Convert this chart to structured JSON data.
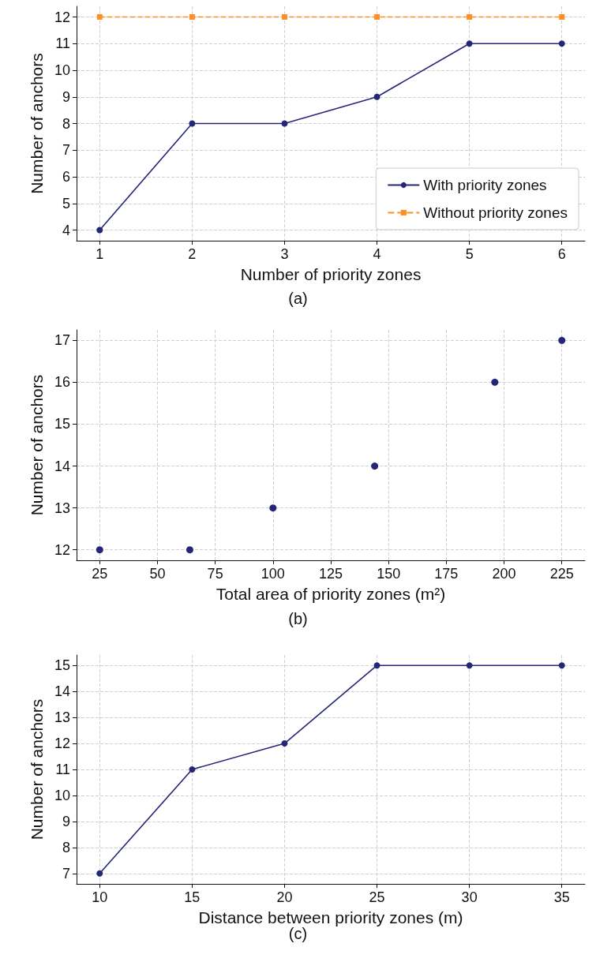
{
  "chart_data": [
    {
      "type": "line",
      "xlabel": "Number of priority zones",
      "ylabel": "Number of anchors",
      "annotations": [
        "(a)"
      ],
      "x": [
        1,
        2,
        3,
        4,
        5,
        6
      ],
      "xlim": [
        0.75,
        6.25
      ],
      "xticks": [
        1,
        2,
        3,
        4,
        5,
        6
      ],
      "ylim": [
        3.6,
        12.4
      ],
      "yticks": [
        4,
        5,
        6,
        7,
        8,
        9,
        10,
        11,
        12
      ],
      "grid": true,
      "legend": "bottom right",
      "series": [
        {
          "name": "With priority zones",
          "color": "#262678",
          "values": [
            4,
            8,
            8,
            9,
            11,
            11
          ],
          "marker": "circle",
          "line_style": "solid"
        },
        {
          "name": "Without priority zones",
          "color": "#fd8f24",
          "values": [
            12,
            12,
            12,
            12,
            12,
            12
          ],
          "marker": "square",
          "line_style": "dashed"
        }
      ]
    },
    {
      "type": "scatter",
      "xlabel": "Total area of priority zones (m²)",
      "ylabel": "Number of anchors",
      "annotations": [
        "(b)"
      ],
      "x": [
        25,
        64,
        100,
        144,
        196,
        225
      ],
      "xlim": [
        15,
        235
      ],
      "xticks": [
        25,
        50,
        75,
        100,
        125,
        150,
        175,
        200,
        225
      ],
      "ylim": [
        11.75,
        17.25
      ],
      "yticks": [
        12,
        13,
        14,
        15,
        16,
        17
      ],
      "grid": true,
      "series": [
        {
          "color": "#262678",
          "values": [
            12,
            12,
            13,
            14,
            16,
            17
          ],
          "marker": "circle"
        }
      ]
    },
    {
      "type": "line",
      "xlabel": "Distance between priority zones (m)",
      "ylabel": "Number of anchors",
      "annotations": [
        "(c)"
      ],
      "x": [
        10,
        15,
        20,
        25,
        30,
        35
      ],
      "xlim": [
        8.75,
        36.25
      ],
      "xticks": [
        10,
        15,
        20,
        25,
        30,
        35
      ],
      "ylim": [
        6.6,
        15.4
      ],
      "yticks": [
        7,
        8,
        9,
        10,
        11,
        12,
        13,
        14,
        15
      ],
      "grid": true,
      "series": [
        {
          "color": "#262678",
          "values": [
            7,
            11,
            12,
            15,
            15,
            15
          ],
          "marker": "circle",
          "line_style": "solid"
        }
      ]
    }
  ]
}
